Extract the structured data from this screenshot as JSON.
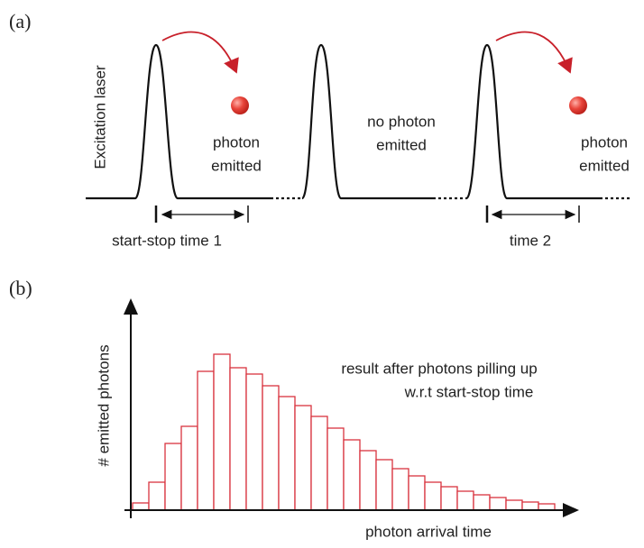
{
  "panel_a": {
    "label": "(a)",
    "y_label": "Excitation laser",
    "emitted_1": [
      "photon",
      "emitted"
    ],
    "not_emitted": [
      "no photon",
      "emitted"
    ],
    "emitted_2": [
      "photon",
      "emitted"
    ],
    "time_1": "start-stop time 1",
    "time_2": "time 2"
  },
  "panel_b": {
    "label": "(b)",
    "y_label": "# emitted photons",
    "x_label": "photon arrival time",
    "annotation": [
      "result after photons pilling up",
      "w.r.t start-stop time"
    ],
    "counts": [
      8,
      31,
      74,
      93,
      154,
      173,
      158,
      151,
      138,
      126,
      116,
      104,
      91,
      78,
      66,
      56,
      46,
      38,
      31,
      26,
      21,
      17,
      14,
      11,
      9,
      7
    ],
    "ylim": [
      0,
      200
    ],
    "bar_color": "#d9343f"
  }
}
